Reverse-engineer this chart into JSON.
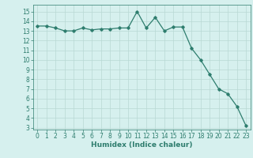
{
  "x": [
    0,
    1,
    2,
    3,
    4,
    5,
    6,
    7,
    8,
    9,
    10,
    11,
    12,
    13,
    14,
    15,
    16,
    17,
    18,
    19,
    20,
    21,
    22,
    23
  ],
  "y": [
    13.5,
    13.5,
    13.3,
    13.0,
    13.0,
    13.3,
    13.1,
    13.2,
    13.2,
    13.3,
    13.3,
    15.0,
    13.3,
    14.4,
    13.0,
    13.4,
    13.4,
    11.2,
    10.0,
    8.5,
    7.0,
    6.5,
    5.2,
    3.2
  ],
  "line_color": "#2e7d6e",
  "marker": "D",
  "marker_size": 1.8,
  "line_width": 0.9,
  "background_color": "#d6f0ee",
  "grid_color": "#b8d8d4",
  "xlabel": "Humidex (Indice chaleur)",
  "ylabel": "",
  "ylim": [
    2.8,
    15.7
  ],
  "xlim": [
    -0.5,
    23.5
  ],
  "yticks": [
    3,
    4,
    5,
    6,
    7,
    8,
    9,
    10,
    11,
    12,
    13,
    14,
    15
  ],
  "xticks": [
    0,
    1,
    2,
    3,
    4,
    5,
    6,
    7,
    8,
    9,
    10,
    11,
    12,
    13,
    14,
    15,
    16,
    17,
    18,
    19,
    20,
    21,
    22,
    23
  ],
  "tick_fontsize": 5.5,
  "label_fontsize": 6.5,
  "label_color": "#2e7d6e",
  "tick_color": "#2e7d6e",
  "spine_color": "#2e7d6e"
}
